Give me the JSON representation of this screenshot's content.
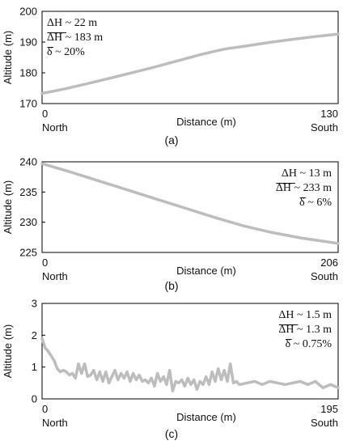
{
  "chart_data": [
    {
      "type": "line",
      "panel": "(a)",
      "xlabel": "Distance (m)",
      "ylabel": "Altitude (m)",
      "xlim": [
        0,
        130
      ],
      "ylim": [
        170,
        200
      ],
      "x_ticks": [
        "0",
        "130"
      ],
      "y_ticks": [
        "170",
        "180",
        "190",
        "200"
      ],
      "x_end_labels": {
        "left": "North",
        "right": "South"
      },
      "annotations": [
        "ΔH ~ 22 m",
        "ΔH ~ 183 m",
        "δ ~ 20%"
      ],
      "annotation_overlines": [
        false,
        true,
        true
      ],
      "annotation_position": "top-left",
      "grid": false,
      "line_color": "#bdbdbd",
      "series": [
        {
          "x": [
            0,
            10,
            20,
            30,
            40,
            50,
            60,
            70,
            80,
            90,
            100,
            110,
            120,
            130
          ],
          "y": [
            173.3,
            174.8,
            176.5,
            178.3,
            180.1,
            182.0,
            184.0,
            186.0,
            187.7,
            188.8,
            189.9,
            190.9,
            191.8,
            192.6
          ]
        }
      ]
    },
    {
      "type": "line",
      "panel": "(b)",
      "xlabel": "Distance (m)",
      "ylabel": "Altitude (m)",
      "xlim": [
        0,
        206
      ],
      "ylim": [
        225,
        240
      ],
      "x_ticks": [
        "0",
        "206"
      ],
      "y_ticks": [
        "225",
        "230",
        "235",
        "240"
      ],
      "x_end_labels": {
        "left": "North",
        "right": "South"
      },
      "annotations": [
        "ΔH ~ 13 m",
        "ΔH ~ 233 m",
        "δ ~ 6%"
      ],
      "annotation_overlines": [
        false,
        true,
        true
      ],
      "annotation_position": "top-right",
      "grid": false,
      "line_color": "#bdbdbd",
      "series": [
        {
          "x": [
            0,
            20,
            40,
            60,
            80,
            100,
            120,
            140,
            160,
            180,
            206
          ],
          "y": [
            239.7,
            238.3,
            236.8,
            235.3,
            233.8,
            232.3,
            230.8,
            229.4,
            228.3,
            227.4,
            226.5
          ]
        }
      ]
    },
    {
      "type": "line",
      "panel": "(c)",
      "xlabel": "Distance (m)",
      "ylabel": "Altitude (m)",
      "xlim": [
        0,
        195
      ],
      "ylim": [
        0,
        3
      ],
      "x_ticks": [
        "0",
        "195"
      ],
      "y_ticks": [
        "0",
        "1",
        "2",
        "3"
      ],
      "x_end_labels": {
        "left": "North",
        "right": "South"
      },
      "annotations": [
        "ΔH ~ 1.5 m",
        "ΔH ~ 1.3 m",
        "δ ~ 0.75%"
      ],
      "annotation_overlines": [
        false,
        true,
        true
      ],
      "annotation_position": "top-right",
      "grid": false,
      "line_color": "#bdbdbd",
      "series": [
        {
          "x": [
            0,
            2,
            4,
            6,
            8,
            10,
            12,
            14,
            16,
            18,
            20,
            22,
            24,
            26,
            28,
            30,
            32,
            34,
            36,
            38,
            40,
            42,
            44,
            46,
            48,
            50,
            52,
            54,
            56,
            58,
            60,
            62,
            64,
            66,
            68,
            70,
            72,
            74,
            76,
            78,
            80,
            82,
            84,
            86,
            88,
            90,
            92,
            94,
            96,
            98,
            100,
            102,
            104,
            106,
            108,
            110,
            112,
            114,
            116,
            118,
            120,
            122,
            124,
            126,
            128,
            130,
            135,
            140,
            145,
            150,
            155,
            160,
            165,
            170,
            175,
            180,
            185,
            190,
            195
          ],
          "y": [
            1.9,
            1.6,
            1.5,
            1.35,
            1.2,
            0.95,
            0.85,
            0.9,
            0.85,
            0.75,
            0.8,
            0.65,
            1.1,
            0.8,
            1.1,
            0.7,
            0.75,
            0.9,
            0.6,
            0.85,
            0.55,
            0.85,
            0.5,
            0.7,
            0.9,
            0.6,
            0.8,
            0.65,
            0.85,
            0.55,
            0.8,
            0.6,
            0.75,
            0.55,
            0.6,
            0.5,
            0.65,
            0.4,
            0.8,
            0.55,
            0.7,
            0.45,
            0.9,
            0.25,
            0.55,
            0.5,
            0.6,
            0.4,
            0.65,
            0.45,
            0.6,
            0.3,
            0.55,
            0.45,
            0.7,
            0.45,
            0.85,
            0.55,
            0.95,
            0.6,
            0.9,
            0.55,
            1.1,
            0.5,
            0.55,
            0.45,
            0.5,
            0.55,
            0.45,
            0.55,
            0.5,
            0.45,
            0.5,
            0.55,
            0.45,
            0.55,
            0.35,
            0.45,
            0.35
          ]
        }
      ]
    }
  ],
  "panel_captions": [
    "(a)",
    "(b)",
    "(c)"
  ]
}
